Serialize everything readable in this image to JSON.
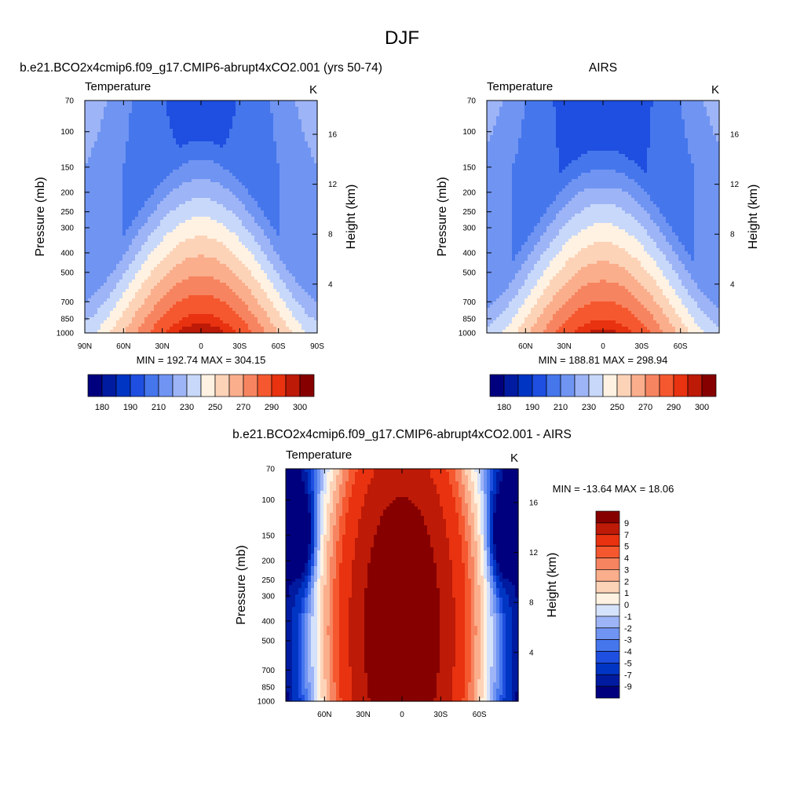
{
  "figure_title": "DJF",
  "colors": {
    "abs": [
      "#00007f",
      "#001aa0",
      "#0035c4",
      "#1e4fe0",
      "#4576ec",
      "#7094f2",
      "#9db4f6",
      "#c8d8fa",
      "#fff2e2",
      "#fdd3b8",
      "#fbae8c",
      "#f78460",
      "#f5582f",
      "#e83210",
      "#bd1a07",
      "#870000"
    ],
    "diff": [
      "#00007f",
      "#001aa0",
      "#0035c4",
      "#1e4fe0",
      "#4576ec",
      "#7094f2",
      "#9db4f6",
      "#d5e2fc",
      "#fff2e2",
      "#fdd3b8",
      "#fbae8c",
      "#f78460",
      "#f5582f",
      "#e83210",
      "#bd1a07",
      "#870000"
    ]
  },
  "chart_data": [
    {
      "type": "heatmap",
      "title": "b.e21.BCO2x4cmip6.f09_g17.CMIP6-abrupt4xCO2.001 (yrs 50-74)",
      "left_label": "Temperature",
      "right_label": "K",
      "xlabel": "",
      "ylabel": "Pressure (mb)",
      "y2label": "Height (km)",
      "xticks": [
        "90N",
        "60N",
        "30N",
        "0",
        "30S",
        "60S",
        "90S"
      ],
      "xtick_lat": [
        90,
        60,
        30,
        0,
        -30,
        -60,
        -90
      ],
      "yticks": [
        70,
        100,
        150,
        200,
        250,
        300,
        400,
        500,
        700,
        850,
        1000
      ],
      "y2ticks": [
        4,
        8,
        12,
        16
      ],
      "xlim": [
        90,
        -90
      ],
      "ylim": [
        1000,
        70
      ],
      "y_scale": "log",
      "stats": "MIN = 192.74  MAX = 304.15",
      "min": 192.74,
      "max": 304.15,
      "levels": [
        180,
        185,
        190,
        200,
        210,
        220,
        230,
        240,
        250,
        260,
        270,
        280,
        290,
        295,
        300
      ],
      "colorbar_labels": [
        "180",
        "190",
        "210",
        "230",
        "250",
        "270",
        "290",
        "300"
      ]
    },
    {
      "type": "heatmap",
      "title": "AIRS",
      "left_label": "Temperature",
      "right_label": "K",
      "xlabel": "",
      "ylabel": "Pressure (mb)",
      "y2label": "Height (km)",
      "xticks": [
        "60N",
        "30N",
        "0",
        "30S",
        "60S"
      ],
      "xtick_lat": [
        60,
        30,
        0,
        -30,
        -60
      ],
      "yticks": [
        70,
        100,
        150,
        200,
        250,
        300,
        400,
        500,
        700,
        850,
        1000
      ],
      "y2ticks": [
        4,
        8,
        12,
        16
      ],
      "xlim": [
        90,
        -90
      ],
      "ylim": [
        1000,
        70
      ],
      "y_scale": "log",
      "stats": "MIN = 188.81  MAX = 298.94",
      "min": 188.81,
      "max": 298.94,
      "levels": [
        180,
        185,
        190,
        200,
        210,
        220,
        230,
        240,
        250,
        260,
        270,
        280,
        290,
        295,
        300
      ],
      "colorbar_labels": [
        "180",
        "190",
        "210",
        "230",
        "250",
        "270",
        "290",
        "300"
      ]
    },
    {
      "type": "heatmap",
      "title": "b.e21.BCO2x4cmip6.f09_g17.CMIP6-abrupt4xCO2.001 - AIRS",
      "left_label": "Temperature",
      "right_label": "K",
      "xlabel": "",
      "ylabel": "Pressure (mb)",
      "y2label": "Height (km)",
      "xticks": [
        "60N",
        "30N",
        "0",
        "30S",
        "60S"
      ],
      "xtick_lat": [
        60,
        30,
        0,
        -30,
        -60
      ],
      "yticks": [
        70,
        100,
        150,
        200,
        250,
        300,
        400,
        500,
        700,
        850,
        1000
      ],
      "y2ticks": [
        4,
        8,
        12,
        16
      ],
      "xlim": [
        90,
        -90
      ],
      "ylim": [
        1000,
        70
      ],
      "y_scale": "log",
      "stats": "MIN = -13.64  MAX =  18.06",
      "min": -13.64,
      "max": 18.06,
      "levels": [
        -9,
        -7,
        -5,
        -4,
        -3,
        -2,
        -1,
        0,
        1,
        2,
        3,
        4,
        5,
        7,
        9
      ],
      "colorbar_labels": [
        "9",
        "7",
        "5",
        "4",
        "3",
        "2",
        "1",
        "0",
        "-1",
        "-2",
        "-3",
        "-4",
        "-5",
        "-7",
        "-9"
      ]
    }
  ]
}
